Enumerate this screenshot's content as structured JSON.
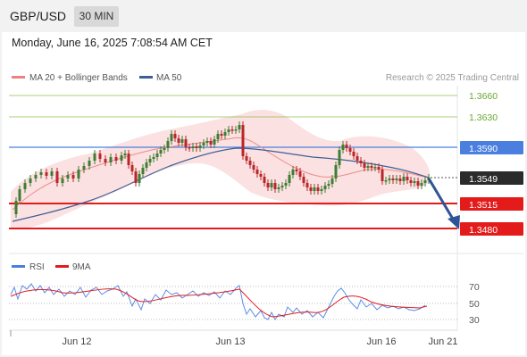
{
  "header": {
    "pair": "GBP/USD",
    "timeframe": "30 MIN"
  },
  "datetime": "Monday, June 16, 2025 7:08:54 AM CET",
  "legend": {
    "ma20": "MA 20 + Bollinger Bands",
    "ma50": "MA 50",
    "credit": "Research © 2025 Trading Central"
  },
  "levels": {
    "l3660": "1.3660",
    "l3630": "1.3630",
    "l3590": "1.3590",
    "current": "1.3549",
    "l3515": "1.3515",
    "l3480": "1.3480"
  },
  "rsi_legend": {
    "rsi": "RSI",
    "ma": "9MA"
  },
  "rsi_axis": [
    "70",
    "50",
    "30"
  ],
  "x_axis": [
    "Jun 12",
    "Jun 13",
    "Jun 16",
    "Jun 21"
  ],
  "colors": {
    "green_line": "#8cc152",
    "blue_line": "#4a7fe0",
    "red_line": "#e31b1b",
    "ma50": "#3d5f97",
    "up_candle": "#3e7d33",
    "down_candle": "#b8262a",
    "band_fill": "#fbdede"
  }
}
